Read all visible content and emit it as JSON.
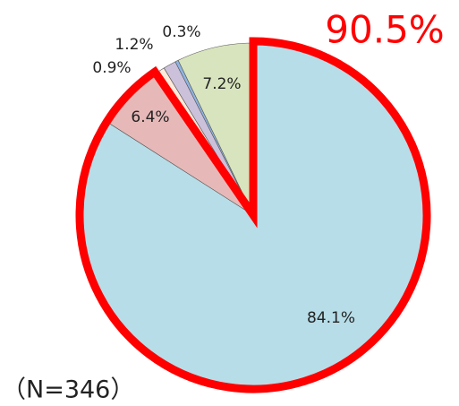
{
  "chart_data": {
    "type": "pie",
    "categories": [
      null,
      null,
      null,
      null,
      null,
      null
    ],
    "values": [
      84.1,
      6.4,
      0.9,
      1.2,
      0.3,
      7.2
    ],
    "value_labels": [
      "84.1%",
      "6.4%",
      "0.9%",
      "1.2%",
      "0.3%",
      "7.2%"
    ],
    "colors": [
      "#b7dde8",
      "#e6b9b8",
      "#fdeada",
      "#ccc1da",
      "#8eb4e3",
      "#d7e4bd"
    ],
    "highlight_color": "#ff0000",
    "annotation": "90.5%",
    "note": "（N=346）"
  }
}
